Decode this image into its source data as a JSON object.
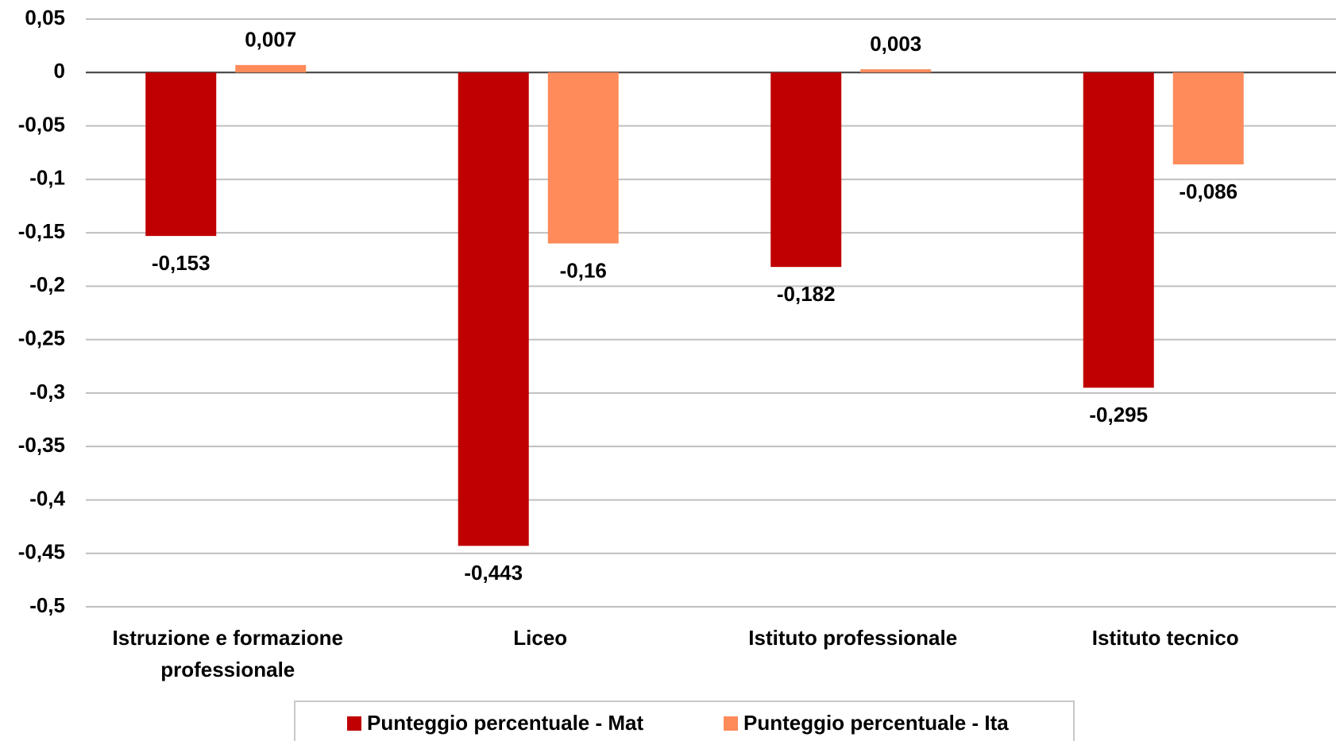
{
  "chart_data": {
    "type": "bar",
    "categories": [
      "Istruzione e formazione professionale",
      "Liceo",
      "Istituto professionale",
      "Istituto tecnico"
    ],
    "series": [
      {
        "name": "Punteggio percentuale - Mat",
        "color": "#c00000",
        "values": [
          -0.153,
          -0.443,
          -0.182,
          -0.295
        ],
        "value_labels": [
          "-0,153",
          "-0,443",
          "-0,182",
          "-0,295"
        ]
      },
      {
        "name": "Punteggio percentuale - Ita",
        "color": "#ff8b5a",
        "values": [
          0.007,
          -0.16,
          0.003,
          -0.086
        ],
        "value_labels": [
          "0,007",
          "-0,16",
          "0,003",
          "-0,086"
        ]
      }
    ],
    "ylim": [
      -0.5,
      0.05
    ],
    "yticks": [
      {
        "value": 0.05,
        "label": "0,05"
      },
      0,
      {
        "value": -0.05,
        "label": "-0,05"
      },
      {
        "value": -0.1,
        "label": "-0,1"
      },
      {
        "value": -0.15,
        "label": "-0,15"
      },
      {
        "value": -0.2,
        "label": "-0,2"
      },
      {
        "value": -0.25,
        "label": "-0,25"
      },
      {
        "value": -0.3,
        "label": "-0,3"
      },
      {
        "value": -0.35,
        "label": "-0,35"
      },
      {
        "value": -0.4,
        "label": "-0,4"
      },
      {
        "value": -0.45,
        "label": "-0,45"
      },
      {
        "value": -0.5,
        "label": "-0,5"
      }
    ],
    "grid": true,
    "legend": "bottom"
  }
}
